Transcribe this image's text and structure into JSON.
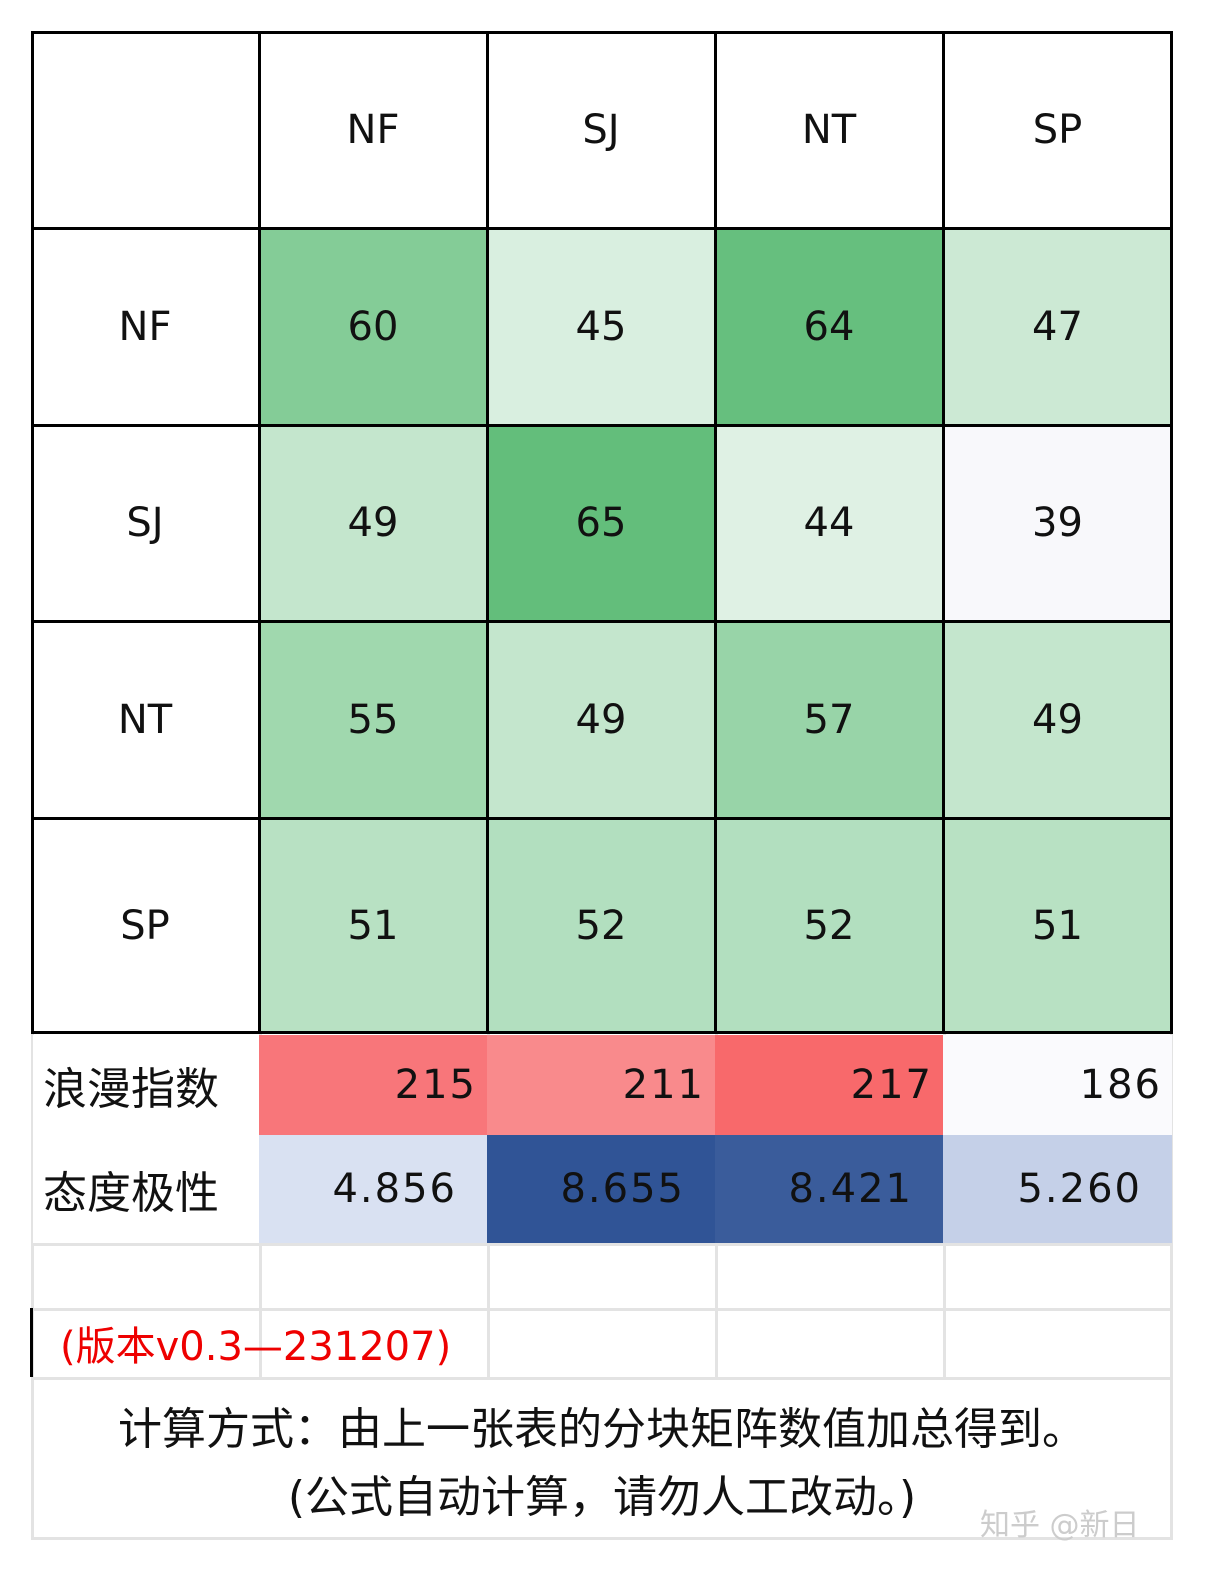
{
  "headers": [
    "NF",
    "SJ",
    "NT",
    "SP"
  ],
  "matrix": [
    {
      "label": "NF",
      "values": [
        "60",
        "45",
        "64",
        "47"
      ],
      "colors": [
        "#84cc97",
        "#d9efe0",
        "#66bf7e",
        "#cce9d4"
      ]
    },
    {
      "label": "SJ",
      "values": [
        "49",
        "65",
        "44",
        "39"
      ],
      "colors": [
        "#c4e6cd",
        "#63be7b",
        "#dff1e4",
        "#f8f8fb"
      ]
    },
    {
      "label": "NT",
      "values": [
        "55",
        "49",
        "57",
        "49"
      ],
      "colors": [
        "#a0d8ae",
        "#c4e6cd",
        "#98d4a8",
        "#c4e6cd"
      ]
    },
    {
      "label": "SP",
      "values": [
        "51",
        "52",
        "52",
        "51"
      ],
      "colors": [
        "#b8e1c3",
        "#b2dfbf",
        "#b2dfbf",
        "#b8e1c3"
      ]
    }
  ],
  "romance": {
    "label": "浪漫指数",
    "values": [
      "215",
      "211",
      "217",
      "186"
    ],
    "colors": [
      "#f8767a",
      "#f98a8c",
      "#f8696b",
      "#fafafd"
    ]
  },
  "attitude": {
    "label": "态度极性",
    "values": [
      "4.856",
      "8.655",
      "8.421",
      "5.260"
    ],
    "colors": [
      "#d9e1f2",
      "#305496",
      "#3a5c9b",
      "#c5d0e8"
    ]
  },
  "version": "(版本v0.3—231207)",
  "note_line1": "计算方式：由上一张表的分块矩阵数值加总得到。",
  "note_line2": "(公式自动计算，请勿人工改动。)",
  "watermark": "知乎 @新日"
}
